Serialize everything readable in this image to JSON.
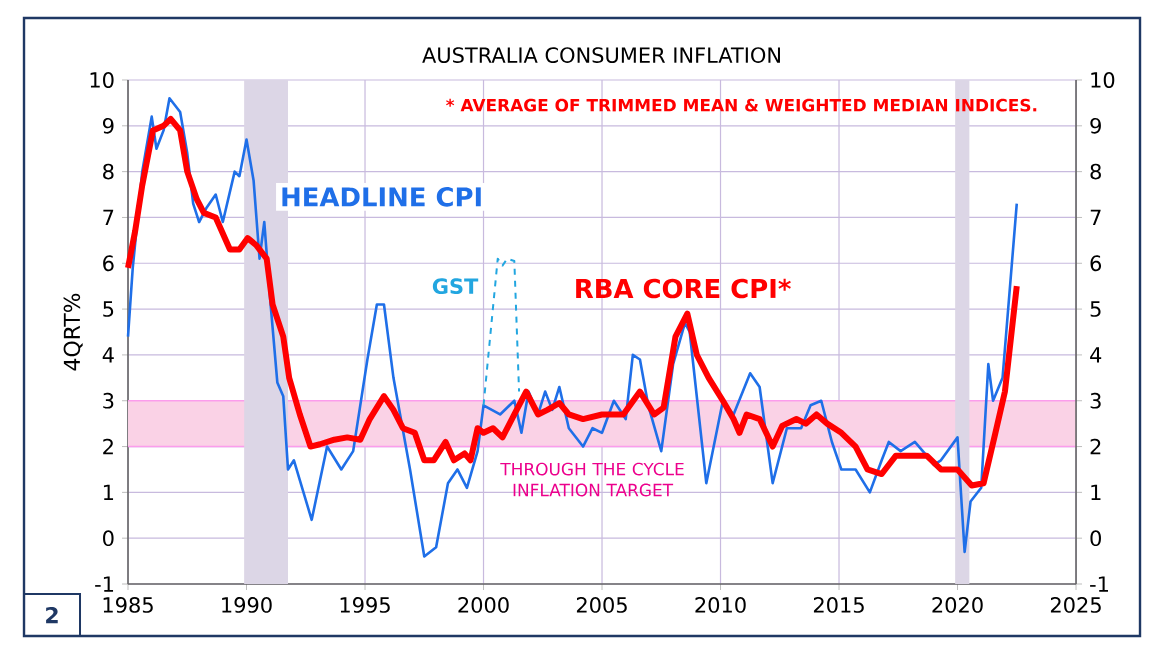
{
  "chart_data": {
    "type": "line",
    "title": "AUSTRALIA CONSUMER INFLATION",
    "ylabel": "4QRT%",
    "xlim": [
      1985,
      2025
    ],
    "xticks": [
      1985,
      1990,
      1995,
      2000,
      2005,
      2010,
      2015,
      2020,
      2025
    ],
    "ylim": [
      -1,
      10
    ],
    "yticks": [
      -1,
      0,
      1,
      2,
      3,
      4,
      5,
      6,
      7,
      8,
      9,
      10
    ],
    "y2lim": [
      -1,
      10
    ],
    "y2ticks": [
      -1,
      0,
      1,
      2,
      3,
      4,
      5,
      6,
      7,
      8,
      9,
      10
    ],
    "grid": true,
    "legend": false,
    "marker": "none",
    "series": [
      {
        "name": "HEADLINE CPI",
        "color": "#1f6fe8",
        "line_style": "solid",
        "x": [
          1985.0,
          1985.2,
          1985.6,
          1986.0,
          1986.2,
          1986.5,
          1986.75,
          1987.2,
          1987.5,
          1987.75,
          1988.0,
          1988.3,
          1988.7,
          1989.0,
          1989.5,
          1989.7,
          1990.0,
          1990.3,
          1990.55,
          1990.75,
          1991.0,
          1991.3,
          1991.55,
          1991.75,
          1992.0,
          1992.75,
          1993.4,
          1994.0,
          1994.5,
          1995.1,
          1995.5,
          1995.8,
          1996.2,
          1996.9,
          1997.5,
          1998.0,
          1998.5,
          1998.9,
          1999.3,
          1999.75,
          2000.0,
          2000.7,
          2001.3,
          2001.6,
          2001.9,
          2002.3,
          2002.6,
          2002.9,
          2003.2,
          2003.6,
          2004.2,
          2004.6,
          2005.0,
          2005.5,
          2006.0,
          2006.3,
          2006.6,
          2006.95,
          2007.5,
          2008.0,
          2008.5,
          2008.7,
          2009.4,
          2010.1,
          2010.55,
          2011.25,
          2011.65,
          2012.2,
          2012.8,
          2013.4,
          2013.8,
          2014.25,
          2014.7,
          2015.1,
          2015.7,
          2016.3,
          2016.8,
          2017.1,
          2017.6,
          2018.2,
          2018.7,
          2019.0,
          2019.3,
          2020.0,
          2020.3,
          2020.55,
          2021.0,
          2021.3,
          2021.5,
          2021.9,
          2022.5
        ],
        "values": [
          4.4,
          5.9,
          8.0,
          9.2,
          8.5,
          8.9,
          9.6,
          9.3,
          8.4,
          7.3,
          6.9,
          7.2,
          7.5,
          6.9,
          8.0,
          7.9,
          8.7,
          7.8,
          6.1,
          6.9,
          5.2,
          3.4,
          3.1,
          1.5,
          1.7,
          0.4,
          2.0,
          1.5,
          1.9,
          3.9,
          5.1,
          5.1,
          3.5,
          1.5,
          -0.4,
          -0.2,
          1.2,
          1.5,
          1.1,
          1.9,
          2.9,
          2.7,
          3.0,
          2.3,
          3.2,
          2.7,
          3.2,
          2.8,
          3.3,
          2.4,
          2.0,
          2.4,
          2.3,
          3.0,
          2.6,
          4.0,
          3.9,
          2.9,
          1.9,
          3.8,
          4.7,
          4.5,
          1.2,
          3.0,
          2.7,
          3.6,
          3.3,
          1.2,
          2.4,
          2.4,
          2.9,
          3.0,
          2.1,
          1.5,
          1.5,
          1.0,
          1.7,
          2.1,
          1.9,
          2.1,
          1.8,
          1.6,
          1.7,
          2.2,
          -0.3,
          0.8,
          1.1,
          3.8,
          3.0,
          3.5,
          7.3
        ]
      },
      {
        "name": "RBA CORE CPI*",
        "color": "#ff0000",
        "line_style": "solid",
        "x": [
          1985.0,
          1985.3,
          1985.6,
          1986.05,
          1986.5,
          1986.8,
          1987.2,
          1987.5,
          1987.9,
          1988.2,
          1988.7,
          1989.3,
          1989.7,
          1990.05,
          1990.4,
          1990.85,
          1991.1,
          1991.55,
          1991.8,
          1992.25,
          1992.7,
          1993.1,
          1993.7,
          1994.25,
          1994.8,
          1995.2,
          1995.8,
          1996.2,
          1996.6,
          1997.1,
          1997.5,
          1997.9,
          1998.4,
          1998.75,
          1999.2,
          1999.45,
          1999.75,
          2000.0,
          2000.4,
          2000.8,
          2001.3,
          2001.8,
          2002.3,
          2002.7,
          2003.2,
          2003.6,
          2004.2,
          2005.0,
          2005.9,
          2006.6,
          2007.2,
          2007.6,
          2008.1,
          2008.6,
          2009.0,
          2009.5,
          2010.1,
          2010.55,
          2010.8,
          2011.1,
          2011.65,
          2012.2,
          2012.6,
          2013.2,
          2013.6,
          2014.05,
          2014.5,
          2015.1,
          2015.7,
          2016.2,
          2016.8,
          2017.4,
          2017.95,
          2018.7,
          2019.3,
          2020.0,
          2020.6,
          2021.1,
          2021.6,
          2022.0,
          2022.5
        ],
        "values": [
          5.9,
          6.7,
          7.7,
          8.9,
          9.0,
          9.15,
          8.9,
          8.0,
          7.4,
          7.1,
          7.0,
          6.3,
          6.3,
          6.55,
          6.4,
          6.1,
          5.1,
          4.4,
          3.5,
          2.7,
          2.0,
          2.05,
          2.15,
          2.2,
          2.15,
          2.6,
          3.1,
          2.8,
          2.4,
          2.3,
          1.7,
          1.7,
          2.1,
          1.7,
          1.85,
          1.7,
          2.4,
          2.3,
          2.4,
          2.2,
          2.7,
          3.2,
          2.7,
          2.8,
          2.95,
          2.7,
          2.6,
          2.7,
          2.7,
          3.2,
          2.7,
          2.85,
          4.4,
          4.9,
          4.0,
          3.5,
          3.0,
          2.6,
          2.3,
          2.7,
          2.6,
          2.0,
          2.45,
          2.6,
          2.5,
          2.7,
          2.5,
          2.3,
          2.0,
          1.5,
          1.4,
          1.8,
          1.8,
          1.8,
          1.5,
          1.5,
          1.15,
          1.2,
          2.3,
          3.2,
          5.5
        ]
      },
      {
        "name": "GST",
        "color": "#22a6e0",
        "line_style": "dashed",
        "x": [
          2000.0,
          2000.6,
          2000.8,
          2001.0,
          2001.3,
          2001.5
        ],
        "values": [
          2.9,
          6.1,
          5.95,
          6.1,
          6.05,
          3.2
        ]
      }
    ],
    "bands": [
      {
        "axis": "y",
        "from": 2,
        "to": 3,
        "label": "THROUGH THE CYCLE INFLATION TARGET",
        "color": "#fad2e6"
      },
      {
        "axis": "x",
        "from": 1989.9,
        "to": 1991.75,
        "color": "#dcd6e6"
      },
      {
        "axis": "x",
        "from": 2019.9,
        "to": 2020.5,
        "color": "#dcd6e6"
      }
    ],
    "annotations": [
      "* AVERAGE OF TRIMMED MEAN & WEIGHTED MEDIAN INDICES.",
      "2"
    ]
  }
}
